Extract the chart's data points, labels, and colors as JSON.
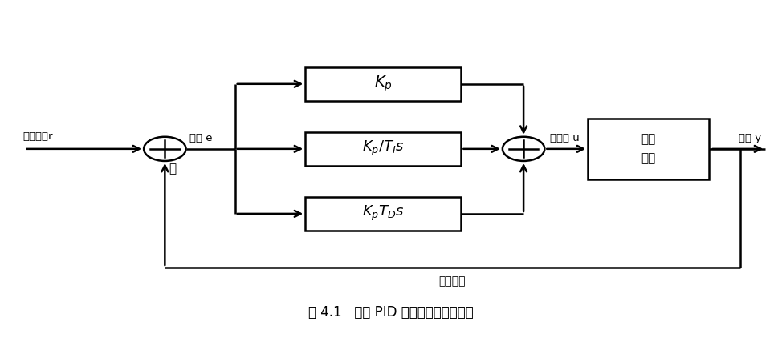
{
  "title": "图 4.1   实现 PID 控制的控制系统结构",
  "bg_color": "#ffffff",
  "line_color": "#000000",
  "text_color": "#000000",
  "labels": {
    "input": "参考输入r",
    "error": "偏差 e",
    "control": "控制量 u",
    "output": "输出 y",
    "feedback": "反馈信号",
    "plant_line1": "被控",
    "plant_line2": "对象",
    "minus": "－",
    "kp": "$K_p$",
    "ki": "$K_p/T_Is$",
    "kd": "$K_pT_Ds$"
  },
  "figsize": [
    9.74,
    4.22
  ],
  "dpi": 100
}
